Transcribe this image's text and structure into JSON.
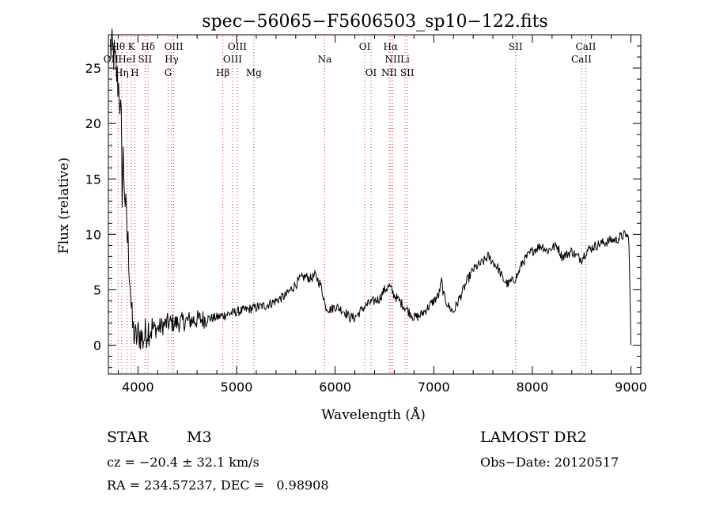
{
  "colors": {
    "line": "#000000",
    "marker": "#cc3333",
    "background": "#ffffff"
  },
  "info": {
    "object_class": "STAR",
    "subclass": "M3",
    "survey": "LAMOST DR2",
    "redshift": "cz = −20.4 ± 32.1 km/s",
    "obs_date": "Obs−Date: 20120517",
    "coords": "RA = 234.57237, DEC =   0.98908"
  },
  "chart_data": {
    "type": "line",
    "title": "spec−56065−F5606503_sp10−122.fits",
    "xlabel": "Wavelength (Å)",
    "ylabel": "Flux (relative)",
    "xlim": [
      3700,
      9100
    ],
    "ylim": [
      -2.6,
      28
    ],
    "grid": false,
    "xticks": [
      4000,
      5000,
      6000,
      7000,
      8000,
      9000
    ],
    "xtick_labels": [
      "4000",
      "5000",
      "6000",
      "7000",
      "8000",
      "9000"
    ],
    "yticks": [
      0,
      5,
      10,
      15,
      20,
      25
    ],
    "ytick_labels": [
      "0",
      "5",
      "10",
      "15",
      "20",
      "25"
    ],
    "series": [
      {
        "x": [
          3720,
          3760,
          3790,
          3810,
          3830,
          3840,
          3850,
          3870,
          3890,
          3900,
          3920,
          3940,
          3960,
          3980,
          4000,
          4020,
          4050,
          4100,
          4150,
          4200,
          4300,
          4400,
          4500,
          4600,
          4700,
          4800,
          4900,
          5000,
          5100,
          5200,
          5300,
          5400,
          5500,
          5550,
          5600,
          5650,
          5700,
          5750,
          5800,
          5850,
          5880,
          5900,
          5950,
          6000,
          6050,
          6100,
          6150,
          6200,
          6250,
          6300,
          6350,
          6400,
          6450,
          6500,
          6550,
          6600,
          6650,
          6700,
          6750,
          6800,
          6850,
          6900,
          6950,
          7000,
          7050,
          7080,
          7100,
          7150,
          7200,
          7250,
          7300,
          7350,
          7400,
          7450,
          7500,
          7550,
          7600,
          7650,
          7700,
          7750,
          7800,
          7850,
          7900,
          7950,
          8000,
          8050,
          8100,
          8150,
          8200,
          8250,
          8300,
          8350,
          8400,
          8450,
          8500,
          8550,
          8600,
          8650,
          8700,
          8750,
          8800,
          8850,
          8900,
          8950,
          8980,
          9000
        ],
        "y": [
          27,
          26,
          24,
          23,
          20,
          14,
          17,
          13,
          10,
          9,
          6,
          2,
          1,
          0.5,
          1,
          1,
          0.5,
          1.5,
          1.5,
          1.5,
          2,
          2,
          2.2,
          2.3,
          2.4,
          2.5,
          2.8,
          3,
          3.2,
          3.4,
          3.6,
          4,
          4.5,
          5,
          5.5,
          6,
          6.2,
          6,
          6.3,
          5.5,
          4.5,
          3.5,
          3.2,
          3.5,
          3.3,
          3,
          2.5,
          2.5,
          3,
          3.5,
          3.8,
          4,
          4.2,
          5,
          5.3,
          4.5,
          4,
          3.5,
          3,
          2.5,
          2.6,
          3,
          3.5,
          4,
          4.5,
          5.8,
          4.5,
          3.5,
          3,
          4,
          5,
          6,
          6.8,
          7.2,
          7.5,
          8,
          7.5,
          7,
          6,
          5.5,
          5.8,
          6.3,
          7.5,
          8,
          8.5,
          8.8,
          9,
          8.5,
          8.8,
          9,
          8,
          8.2,
          8.5,
          8,
          7.8,
          8.5,
          8.8,
          9,
          9.2,
          9.3,
          9.5,
          9.5,
          9.8,
          10,
          9.5,
          0
        ]
      }
    ],
    "line_markers": [
      {
        "label": "Hθ",
        "x": 3798,
        "row": 1
      },
      {
        "label": "OII",
        "x": 3727,
        "row": 2
      },
      {
        "label": "Hη",
        "x": 3835,
        "row": 3
      },
      {
        "label": "K",
        "x": 3934,
        "row": 1
      },
      {
        "label": "HeI",
        "x": 3889,
        "row": 2
      },
      {
        "label": "SII",
        "x": 4072,
        "row": 2
      },
      {
        "label": "H",
        "x": 3969,
        "row": 3
      },
      {
        "label": "Hδ",
        "x": 4102,
        "row": 1
      },
      {
        "label": "OIII",
        "x": 4363,
        "row": 1
      },
      {
        "label": "Hγ",
        "x": 4341,
        "row": 2
      },
      {
        "label": "G",
        "x": 4305,
        "row": 3
      },
      {
        "label": "Hβ",
        "x": 4861,
        "row": 3
      },
      {
        "label": "OIII",
        "x": 5007,
        "row": 1
      },
      {
        "label": "OIII",
        "x": 4959,
        "row": 2
      },
      {
        "label": "Mg",
        "x": 5175,
        "row": 3
      },
      {
        "label": "Na",
        "x": 5894,
        "row": 2
      },
      {
        "label": "OI",
        "x": 6300,
        "row": 1
      },
      {
        "label": "OI",
        "x": 6364,
        "row": 3
      },
      {
        "label": "Hα",
        "x": 6563,
        "row": 1
      },
      {
        "label": "NII",
        "x": 6584,
        "row": 2
      },
      {
        "label": "Li",
        "x": 6708,
        "row": 2
      },
      {
        "label": "NII",
        "x": 6548,
        "row": 3
      },
      {
        "label": "SII",
        "x": 6731,
        "row": 3
      },
      {
        "label": "SII",
        "x": 7830,
        "row": 1
      },
      {
        "label": "CaII",
        "x": 8542,
        "row": 1
      },
      {
        "label": "CaII",
        "x": 8498,
        "row": 2
      }
    ]
  }
}
